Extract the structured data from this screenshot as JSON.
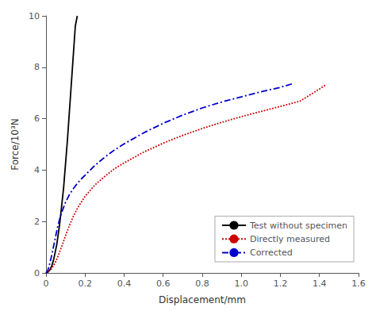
{
  "chart_data": {
    "type": "line",
    "title": "",
    "xlabel": "Displacement/mm",
    "ylabel": "Force/10³N",
    "xlim": [
      0,
      1.6
    ],
    "ylim": [
      0,
      10
    ],
    "xticks": [
      0,
      0.2,
      0.4,
      0.6,
      0.8,
      {
        "value": 1.0,
        "label": "1.0"
      },
      1.2,
      1.4,
      1.6
    ],
    "yticks": [
      0,
      2,
      4,
      6,
      8,
      10
    ],
    "grid": false,
    "legend": "lower right",
    "series": [
      {
        "name": "Test without specimen",
        "color": "#000000",
        "line_style": "solid",
        "x": [
          0.0,
          0.005,
          0.01,
          0.02,
          0.03,
          0.04,
          0.055,
          0.07,
          0.09,
          0.11,
          0.13,
          0.15,
          0.16
        ],
        "values": [
          0.0,
          0.01,
          0.03,
          0.12,
          0.28,
          0.55,
          1.1,
          1.9,
          3.3,
          5.2,
          7.4,
          9.6,
          10.0
        ]
      },
      {
        "name": "Directly measured",
        "color": "#cc0000",
        "line_style": "dotted",
        "x": [
          0.0,
          0.01,
          0.02,
          0.03,
          0.04,
          0.05,
          0.06,
          0.07,
          0.08,
          0.1,
          0.12,
          0.14,
          0.16,
          0.18,
          0.2,
          0.25,
          0.3,
          0.35,
          0.4,
          0.5,
          0.6,
          0.7,
          0.8,
          0.9,
          1.0,
          1.1,
          1.2,
          1.3,
          1.43
        ],
        "values": [
          0.0,
          0.04,
          0.1,
          0.18,
          0.3,
          0.45,
          0.62,
          0.82,
          1.02,
          1.45,
          1.85,
          2.2,
          2.5,
          2.75,
          2.98,
          3.42,
          3.75,
          4.05,
          4.28,
          4.7,
          5.05,
          5.35,
          5.62,
          5.86,
          6.08,
          6.28,
          6.48,
          6.68,
          7.3
        ]
      },
      {
        "name": "Corrected",
        "color": "#0000cc",
        "line_style": "dashdot",
        "x": [
          0.0,
          0.01,
          0.02,
          0.03,
          0.04,
          0.05,
          0.06,
          0.07,
          0.08,
          0.1,
          0.12,
          0.14,
          0.16,
          0.18,
          0.2,
          0.25,
          0.3,
          0.35,
          0.4,
          0.5,
          0.6,
          0.7,
          0.8,
          0.9,
          1.0,
          1.1,
          1.2,
          1.27
        ],
        "values": [
          0.0,
          0.12,
          0.38,
          0.72,
          1.08,
          1.45,
          1.8,
          2.1,
          2.35,
          2.75,
          3.05,
          3.28,
          3.48,
          3.65,
          3.8,
          4.18,
          4.5,
          4.78,
          5.02,
          5.45,
          5.82,
          6.14,
          6.42,
          6.65,
          6.85,
          7.05,
          7.22,
          7.38
        ]
      }
    ]
  }
}
